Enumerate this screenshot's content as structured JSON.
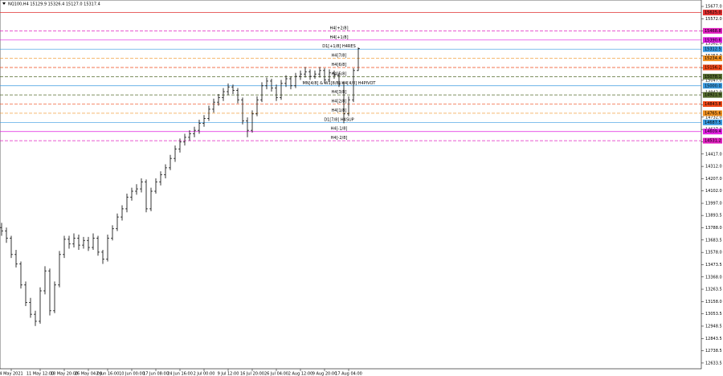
{
  "chart_data": {
    "type": "ohlc",
    "title": "NQ100,H4  15129.9 15326.4 15127.0 15317.4",
    "categories": [
      null,
      null,
      "4 May 2021",
      null,
      null,
      null,
      null,
      null,
      "11 May 12:00",
      null,
      null,
      null,
      null,
      "18 May 20:00",
      null,
      null,
      null,
      null,
      "26 May 04:00",
      null,
      null,
      null,
      "2 Jun 16:00",
      null,
      null,
      null,
      null,
      "10 Jun 00:00",
      null,
      null,
      null,
      null,
      "17 Jun 08:00",
      null,
      null,
      null,
      null,
      "24 Jun 16:00",
      null,
      null,
      null,
      null,
      "2 Jul 00:00",
      null,
      null,
      null,
      null,
      "9 Jul 12:00",
      null,
      null,
      null,
      null,
      "16 Jul 20:00",
      null,
      null,
      null,
      null,
      "26 Jul 04:00",
      null,
      null,
      null,
      null,
      "2 Aug 12:00",
      null,
      null,
      null,
      null,
      "9 Aug 20:00",
      null,
      null,
      null,
      null,
      "17 Aug 04:00",
      null,
      null
    ],
    "series": [
      {
        "color": "#000000",
        "values": [
          [
            13790,
            13830,
            13720,
            13760
          ],
          [
            13760,
            13790,
            13660,
            13700
          ],
          [
            13700,
            13720,
            13530,
            13560
          ],
          [
            13560,
            13600,
            13450,
            13480
          ],
          [
            13480,
            13500,
            13270,
            13300
          ],
          [
            13300,
            13330,
            13120,
            13150
          ],
          [
            13150,
            13190,
            13020,
            13050
          ],
          [
            13050,
            13080,
            12950,
            12990
          ],
          [
            12990,
            13280,
            12970,
            13250
          ],
          [
            13250,
            13460,
            13220,
            13420
          ],
          [
            13420,
            13440,
            13040,
            13080
          ],
          [
            13080,
            13330,
            13060,
            13300
          ],
          [
            13300,
            13590,
            13280,
            13560
          ],
          [
            13560,
            13720,
            13530,
            13690
          ],
          [
            13690,
            13720,
            13610,
            13650
          ],
          [
            13650,
            13740,
            13620,
            13700
          ],
          [
            13700,
            13730,
            13600,
            13640
          ],
          [
            13640,
            13710,
            13610,
            13680
          ],
          [
            13680,
            13710,
            13590,
            13620
          ],
          [
            13620,
            13740,
            13600,
            13700
          ],
          [
            13700,
            13720,
            13550,
            13580
          ],
          [
            13580,
            13600,
            13480,
            13520
          ],
          [
            13520,
            13730,
            13500,
            13700
          ],
          [
            13700,
            13810,
            13680,
            13780
          ],
          [
            13780,
            13910,
            13760,
            13880
          ],
          [
            13880,
            13980,
            13850,
            13950
          ],
          [
            13950,
            14080,
            13920,
            14050
          ],
          [
            14050,
            14130,
            14020,
            14100
          ],
          [
            14100,
            14160,
            14070,
            14120
          ],
          [
            14120,
            14210,
            14090,
            14180
          ],
          [
            14180,
            14200,
            13920,
            13950
          ],
          [
            13950,
            14130,
            13930,
            14100
          ],
          [
            14100,
            14210,
            14080,
            14180
          ],
          [
            14180,
            14270,
            14150,
            14240
          ],
          [
            14240,
            14330,
            14210,
            14300
          ],
          [
            14300,
            14410,
            14280,
            14380
          ],
          [
            14380,
            14490,
            14350,
            14460
          ],
          [
            14460,
            14550,
            14430,
            14520
          ],
          [
            14520,
            14590,
            14490,
            14560
          ],
          [
            14560,
            14620,
            14530,
            14590
          ],
          [
            14590,
            14650,
            14560,
            14620
          ],
          [
            14620,
            14710,
            14590,
            14680
          ],
          [
            14680,
            14750,
            14650,
            14720
          ],
          [
            14720,
            14830,
            14700,
            14800
          ],
          [
            14800,
            14890,
            14770,
            14860
          ],
          [
            14860,
            14930,
            14830,
            14900
          ],
          [
            14900,
            14980,
            14870,
            14950
          ],
          [
            14950,
            15020,
            14920,
            14990
          ],
          [
            14990,
            15010,
            14930,
            14960
          ],
          [
            14960,
            14980,
            14850,
            14880
          ],
          [
            14880,
            14900,
            14670,
            14700
          ],
          [
            14700,
            14730,
            14560,
            14620
          ],
          [
            14620,
            14790,
            14600,
            14760
          ],
          [
            14760,
            14910,
            14740,
            14880
          ],
          [
            14880,
            15030,
            14860,
            15000
          ],
          [
            15000,
            15070,
            14970,
            15040
          ],
          [
            15040,
            15060,
            14950,
            14980
          ],
          [
            14980,
            15010,
            14870,
            14900
          ],
          [
            14900,
            15050,
            14880,
            15020
          ],
          [
            15020,
            15090,
            14990,
            15060
          ],
          [
            15060,
            15080,
            14970,
            15000
          ],
          [
            15000,
            15110,
            14980,
            15080
          ],
          [
            15080,
            15130,
            15050,
            15100
          ],
          [
            15100,
            15160,
            15070,
            15120
          ],
          [
            15120,
            15140,
            15050,
            15080
          ],
          [
            15080,
            15130,
            15060,
            15100
          ],
          [
            15100,
            15160,
            15070,
            15130
          ],
          [
            15130,
            15150,
            15020,
            15050
          ],
          [
            15050,
            15140,
            15030,
            15110
          ],
          [
            15110,
            15130,
            15060,
            15090
          ],
          [
            15090,
            15110,
            14990,
            15020
          ],
          [
            15020,
            15040,
            14680,
            14760
          ],
          [
            14760,
            14910,
            14740,
            14880
          ],
          [
            14880,
            15150,
            14860,
            15130
          ],
          [
            15129.9,
            15326.4,
            15127.0,
            15317.4
          ]
        ]
      }
    ],
    "levels": [
      {
        "value": 15625.0,
        "value_label": "15625.0",
        "color": "#e03030",
        "dash": false
      },
      {
        "name": "H4[+2/8]",
        "value": 15468.8,
        "value_label": "15468.8",
        "color": "#e020c0",
        "dash": true
      },
      {
        "name": "H4[+1/8]",
        "value": 15390.6,
        "value_label": "15390.6",
        "color": "#e020e0",
        "dash": false
      },
      {
        "name": "D1[+1/8] H4RES",
        "value": 15312.5,
        "value_label": "15312.5",
        "color": "#3a9ae0",
        "dash": false
      },
      {
        "name": "H4[7/8]",
        "value": 15234.4,
        "value_label": "15234.4",
        "color": "#f09020",
        "dash": true
      },
      {
        "name": "H4[6/8]",
        "value": 15156.2,
        "value_label": "15156.2",
        "color": "#f04818",
        "dash": true
      },
      {
        "name": "H4[5/8]",
        "value": 15078.1,
        "value_label": "15078.1",
        "color": "#556b2f",
        "dash": true
      },
      {
        "name": "MN[4/8] & W1[8/8] H4[4/8] H4PIVOT",
        "value": 15000.0,
        "value_label": "15000.0",
        "color": "#3a9ae0",
        "dash": false
      },
      {
        "name": "H4[3/8]",
        "value": 14921.9,
        "value_label": "14921.9",
        "color": "#556b2f",
        "dash": true
      },
      {
        "name": "H4[2/8]",
        "value": 14843.8,
        "value_label": "14843.8",
        "color": "#f04818",
        "dash": true
      },
      {
        "name": "H4[1/8]",
        "value": 14765.6,
        "value_label": "14765.6",
        "color": "#f09020",
        "dash": true
      },
      {
        "name": "D1[7/8] H4SUP",
        "value": 14687.5,
        "value_label": "14687.5",
        "color": "#3a9ae0",
        "dash": false
      },
      {
        "name": "H4[-1/8]",
        "value": 14609.4,
        "value_label": "14609.4",
        "color": "#e020e0",
        "dash": false
      },
      {
        "name": "H4[-2/8]",
        "value": 14531.2,
        "value_label": "14531.2",
        "color": "#e020c0",
        "dash": true
      }
    ],
    "ylim": [
      12578,
      15732
    ],
    "yticks": [
      {
        "value": 15677,
        "label": "15677.0"
      },
      {
        "value": 15572,
        "label": "15572.0"
      },
      {
        "value": 15467,
        "label": "15467.0"
      },
      {
        "value": 15362,
        "label": "15362.0"
      },
      {
        "value": 15257,
        "label": "15257.0"
      },
      {
        "value": 15152,
        "label": "15152.0"
      },
      {
        "value": 15047,
        "label": "15047.0"
      },
      {
        "value": 14942,
        "label": "14942.0"
      },
      {
        "value": 14837,
        "label": "14837.0"
      },
      {
        "value": 14732,
        "label": "14732.0"
      },
      {
        "value": 14627,
        "label": "14627.0"
      },
      {
        "value": 14522,
        "label": "14522.0"
      },
      {
        "value": 14417,
        "label": "14417.0"
      },
      {
        "value": 14312,
        "label": "14312.0"
      },
      {
        "value": 14207,
        "label": "14207.0"
      },
      {
        "value": 14102,
        "label": "14102.0"
      },
      {
        "value": 13997,
        "label": "13997.0"
      },
      13893.5,
      {
        "value": 13788,
        "label": "13788.0"
      },
      13683.5,
      {
        "value": 13578,
        "label": "13578.0"
      },
      13473.5,
      {
        "value": 13368,
        "label": "13368.0"
      },
      13263.5,
      {
        "value": 13158,
        "label": "13158.0"
      },
      13053.5,
      12948.5,
      12843.5,
      12738.5,
      12633.5
    ],
    "grid": false
  }
}
